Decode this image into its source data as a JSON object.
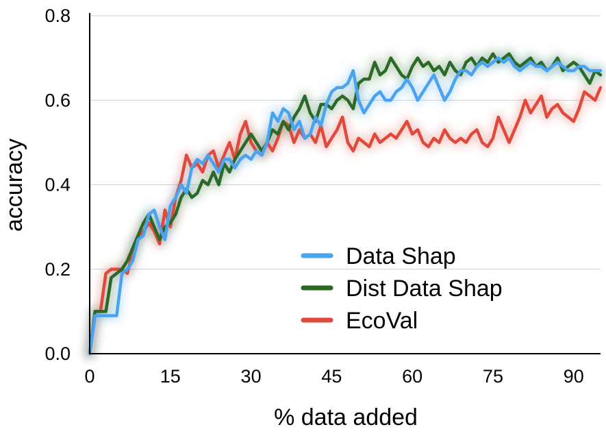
{
  "chart_data": {
    "type": "line",
    "title": "",
    "xlabel": "% data added",
    "ylabel": "accuracy",
    "xlim": [
      0,
      95
    ],
    "ylim": [
      0,
      0.8
    ],
    "grid": true,
    "legend_position": "bottom-right",
    "x_ticks": [
      0,
      15,
      30,
      45,
      60,
      75,
      90
    ],
    "y_ticks": [
      0,
      0.2,
      0.4,
      0.6,
      0.8
    ],
    "x_tick_labels": [
      "0",
      "15",
      "30",
      "45",
      "60",
      "75",
      "90"
    ],
    "y_tick_labels": [
      "0.0",
      "0.2",
      "0.4",
      "0.6",
      "0.8"
    ],
    "series": [
      {
        "name": "Data Shap",
        "color": "#4aa3ef",
        "x": [
          0,
          1,
          2,
          3,
          4,
          5,
          6,
          7,
          8,
          9,
          10,
          11,
          12,
          13,
          14,
          15,
          16,
          17,
          18,
          19,
          20,
          21,
          22,
          23,
          24,
          25,
          26,
          27,
          28,
          29,
          30,
          31,
          32,
          33,
          34,
          35,
          36,
          37,
          38,
          39,
          40,
          41,
          42,
          43,
          44,
          45,
          46,
          47,
          48,
          49,
          50,
          51,
          52,
          53,
          54,
          55,
          56,
          57,
          58,
          59,
          60,
          61,
          62,
          63,
          64,
          65,
          66,
          67,
          68,
          69,
          70,
          71,
          72,
          73,
          74,
          75,
          76,
          77,
          78,
          79,
          80,
          81,
          82,
          83,
          84,
          85,
          86,
          87,
          88,
          89,
          90,
          91,
          92,
          93,
          94,
          95
        ],
        "values": [
          0.0,
          0.09,
          0.09,
          0.09,
          0.09,
          0.09,
          0.19,
          0.2,
          0.22,
          0.27,
          0.28,
          0.33,
          0.34,
          0.3,
          0.27,
          0.35,
          0.37,
          0.4,
          0.38,
          0.44,
          0.46,
          0.45,
          0.47,
          0.45,
          0.43,
          0.46,
          0.46,
          0.44,
          0.46,
          0.47,
          0.46,
          0.48,
          0.47,
          0.5,
          0.57,
          0.55,
          0.58,
          0.57,
          0.53,
          0.55,
          0.51,
          0.52,
          0.56,
          0.54,
          0.59,
          0.62,
          0.63,
          0.63,
          0.64,
          0.67,
          0.6,
          0.57,
          0.59,
          0.61,
          0.62,
          0.6,
          0.6,
          0.62,
          0.63,
          0.65,
          0.63,
          0.6,
          0.62,
          0.64,
          0.66,
          0.63,
          0.6,
          0.62,
          0.65,
          0.67,
          0.67,
          0.66,
          0.68,
          0.69,
          0.68,
          0.69,
          0.7,
          0.69,
          0.7,
          0.68,
          0.67,
          0.68,
          0.69,
          0.68,
          0.68,
          0.67,
          0.68,
          0.69,
          0.68,
          0.67,
          0.67,
          0.68,
          0.68,
          0.67,
          0.67,
          0.67
        ]
      },
      {
        "name": "Dist Data Shap",
        "color": "#2b6a26",
        "x": [
          0,
          1,
          2,
          3,
          4,
          5,
          6,
          7,
          8,
          9,
          10,
          11,
          12,
          13,
          14,
          15,
          16,
          17,
          18,
          19,
          20,
          21,
          22,
          23,
          24,
          25,
          26,
          27,
          28,
          29,
          30,
          31,
          32,
          33,
          34,
          35,
          36,
          37,
          38,
          39,
          40,
          41,
          42,
          43,
          44,
          45,
          46,
          47,
          48,
          49,
          50,
          51,
          52,
          53,
          54,
          55,
          56,
          57,
          58,
          59,
          60,
          61,
          62,
          63,
          64,
          65,
          66,
          67,
          68,
          69,
          70,
          71,
          72,
          73,
          74,
          75,
          76,
          77,
          78,
          79,
          80,
          81,
          82,
          83,
          84,
          85,
          86,
          87,
          88,
          89,
          90,
          91,
          92,
          93,
          94,
          95
        ],
        "values": [
          0.0,
          0.1,
          0.1,
          0.1,
          0.18,
          0.19,
          0.2,
          0.22,
          0.25,
          0.28,
          0.31,
          0.33,
          0.3,
          0.27,
          0.3,
          0.31,
          0.33,
          0.37,
          0.39,
          0.37,
          0.38,
          0.41,
          0.4,
          0.43,
          0.4,
          0.45,
          0.43,
          0.46,
          0.48,
          0.5,
          0.52,
          0.5,
          0.48,
          0.5,
          0.53,
          0.52,
          0.55,
          0.53,
          0.56,
          0.58,
          0.61,
          0.57,
          0.55,
          0.59,
          0.59,
          0.58,
          0.6,
          0.61,
          0.6,
          0.58,
          0.64,
          0.65,
          0.65,
          0.69,
          0.66,
          0.67,
          0.7,
          0.68,
          0.66,
          0.65,
          0.68,
          0.7,
          0.68,
          0.69,
          0.67,
          0.68,
          0.66,
          0.69,
          0.67,
          0.66,
          0.69,
          0.7,
          0.68,
          0.7,
          0.69,
          0.71,
          0.69,
          0.7,
          0.71,
          0.69,
          0.68,
          0.69,
          0.7,
          0.68,
          0.69,
          0.67,
          0.68,
          0.7,
          0.67,
          0.68,
          0.69,
          0.68,
          0.66,
          0.64,
          0.67,
          0.66
        ]
      },
      {
        "name": "EcoVal",
        "color": "#e04a3d",
        "x": [
          0,
          1,
          2,
          3,
          4,
          5,
          6,
          7,
          8,
          9,
          10,
          11,
          12,
          13,
          14,
          15,
          16,
          17,
          18,
          19,
          20,
          21,
          22,
          23,
          24,
          25,
          26,
          27,
          28,
          29,
          30,
          31,
          32,
          33,
          34,
          35,
          36,
          37,
          38,
          39,
          40,
          41,
          42,
          43,
          44,
          45,
          46,
          47,
          48,
          49,
          50,
          51,
          52,
          53,
          54,
          55,
          56,
          57,
          58,
          59,
          60,
          61,
          62,
          63,
          64,
          65,
          66,
          67,
          68,
          69,
          70,
          71,
          72,
          73,
          74,
          75,
          76,
          77,
          78,
          79,
          80,
          81,
          82,
          83,
          84,
          85,
          86,
          87,
          88,
          89,
          90,
          91,
          92,
          93,
          94,
          95
        ],
        "values": [
          0.0,
          0.1,
          0.1,
          0.19,
          0.2,
          0.2,
          0.2,
          0.19,
          0.24,
          0.27,
          0.29,
          0.31,
          0.29,
          0.26,
          0.34,
          0.3,
          0.37,
          0.41,
          0.47,
          0.44,
          0.45,
          0.43,
          0.47,
          0.48,
          0.44,
          0.47,
          0.5,
          0.46,
          0.52,
          0.55,
          0.5,
          0.48,
          0.47,
          0.5,
          0.48,
          0.51,
          0.55,
          0.54,
          0.5,
          0.53,
          0.51,
          0.52,
          0.5,
          0.54,
          0.49,
          0.51,
          0.53,
          0.56,
          0.5,
          0.48,
          0.51,
          0.5,
          0.49,
          0.52,
          0.5,
          0.51,
          0.52,
          0.51,
          0.53,
          0.55,
          0.52,
          0.53,
          0.5,
          0.49,
          0.51,
          0.5,
          0.53,
          0.51,
          0.5,
          0.51,
          0.5,
          0.52,
          0.53,
          0.5,
          0.49,
          0.51,
          0.56,
          0.53,
          0.5,
          0.53,
          0.56,
          0.6,
          0.57,
          0.59,
          0.61,
          0.56,
          0.58,
          0.59,
          0.57,
          0.56,
          0.55,
          0.58,
          0.62,
          0.61,
          0.6,
          0.63
        ]
      }
    ]
  }
}
